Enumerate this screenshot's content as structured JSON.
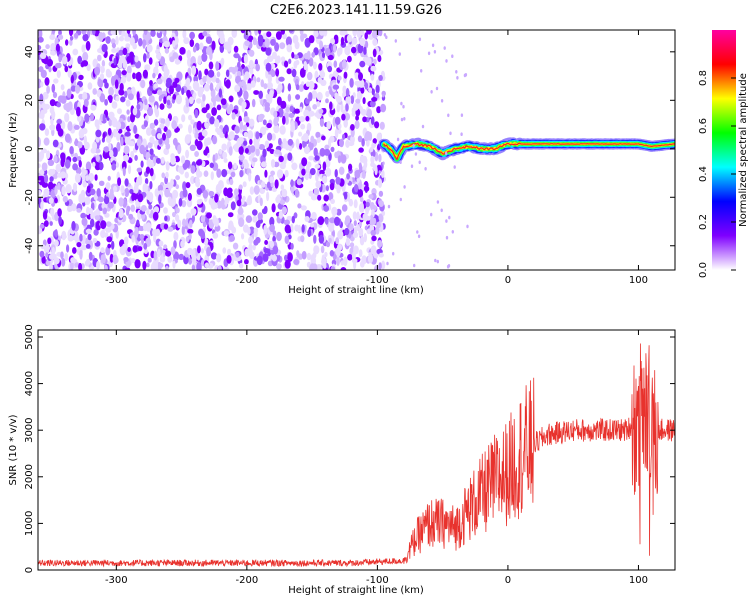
{
  "title": "C2E6.2023.141.11.59.G26",
  "colors": {
    "snr_line": "#e8322d",
    "axis": "#000000",
    "background": "#ffffff"
  },
  "chart_data": [
    {
      "type": "heatmap",
      "xlabel": "Height of straight line (km)",
      "ylabel": "Frequency (Hz)",
      "xlim": [
        -360,
        128
      ],
      "ylim": [
        -50,
        49
      ],
      "xticks": [
        -300,
        -200,
        -100,
        0,
        100
      ],
      "yticks": [
        -40,
        -20,
        0,
        20,
        40
      ],
      "colorbar": {
        "label": "Normalized spectral amplitude",
        "range": [
          0,
          1
        ],
        "ticks": [
          "0.0",
          "0.2",
          "0.4",
          "0.6",
          "0.8"
        ],
        "colormap": [
          "#ffffff",
          "#7f00ff",
          "#0000ff",
          "#00ffff",
          "#00ff00",
          "#ffff00",
          "#ff0000",
          "#ff00a0"
        ]
      },
      "noise_region_x": [
        -360,
        -95
      ],
      "signal_track": [
        {
          "x": -95,
          "freq": 2,
          "amp": 0.6
        },
        {
          "x": -90,
          "freq": 0,
          "amp": 0.7
        },
        {
          "x": -85,
          "freq": -4,
          "amp": 0.5
        },
        {
          "x": -80,
          "freq": 1,
          "amp": 0.6
        },
        {
          "x": -70,
          "freq": 2,
          "amp": 0.6
        },
        {
          "x": -60,
          "freq": 1,
          "amp": 0.6
        },
        {
          "x": -50,
          "freq": -2,
          "amp": 0.6
        },
        {
          "x": -40,
          "freq": 0,
          "amp": 0.6
        },
        {
          "x": -30,
          "freq": 1,
          "amp": 0.7
        },
        {
          "x": -20,
          "freq": 0,
          "amp": 0.8
        },
        {
          "x": -10,
          "freq": 0,
          "amp": 0.8
        },
        {
          "x": 0,
          "freq": 2,
          "amp": 0.85
        },
        {
          "x": 20,
          "freq": 2,
          "amp": 0.9
        },
        {
          "x": 50,
          "freq": 2,
          "amp": 0.9
        },
        {
          "x": 80,
          "freq": 2,
          "amp": 0.9
        },
        {
          "x": 100,
          "freq": 2,
          "amp": 0.85
        },
        {
          "x": 110,
          "freq": 1,
          "amp": 0.7
        },
        {
          "x": 128,
          "freq": 2,
          "amp": 0.9
        }
      ]
    },
    {
      "type": "line",
      "xlabel": "Height of straight line (km)",
      "ylabel": "SNR (10 * v/v)",
      "xlim": [
        -360,
        128
      ],
      "ylim": [
        0,
        5150
      ],
      "xticks": [
        -300,
        -200,
        -100,
        0,
        100
      ],
      "yticks": [
        0,
        1000,
        2000,
        3000,
        4000,
        5000
      ],
      "series": [
        {
          "x": [
            -360,
            -300,
            -200,
            -120,
            -80,
            -70,
            -60,
            -50,
            -40,
            -30,
            -20,
            -10,
            0,
            10,
            20,
            30,
            50,
            70,
            90,
            100,
            105,
            110,
            115,
            128
          ],
          "y": [
            150,
            150,
            150,
            150,
            200,
            700,
            1000,
            1000,
            900,
            1300,
            1600,
            1900,
            2100,
            2500,
            2700,
            2900,
            3000,
            3000,
            3000,
            3200,
            3600,
            2600,
            3000,
            3000
          ]
        }
      ]
    }
  ]
}
